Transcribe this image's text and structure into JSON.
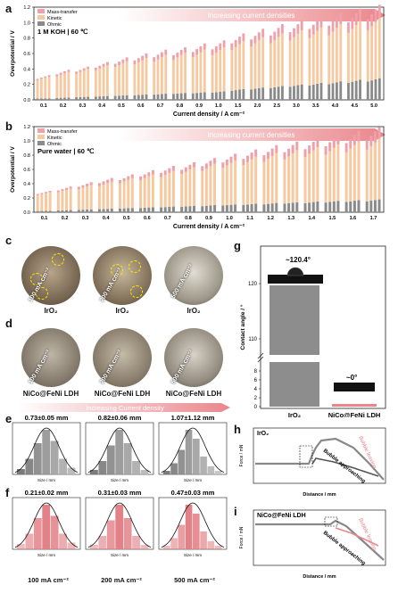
{
  "panels": {
    "a": {
      "label": "a",
      "condition": "1 M KOH | 60 ℃",
      "banner": "Increasing current densities",
      "legend": [
        "Mass-transfer",
        "Kinetic",
        "Ohmic"
      ],
      "ylabel": "Overpotential / V",
      "xlabel": "Current density / A cm⁻²",
      "yticks": [
        "0.0",
        "0.2",
        "0.4",
        "0.6",
        "0.8",
        "1.0",
        "1.2"
      ]
    },
    "b": {
      "label": "b",
      "condition": "Pure water | 60 ℃",
      "banner": "Increasing current densities",
      "legend": [
        "Mass-transfer",
        "Kinetic",
        "Ohmic"
      ],
      "ylabel": "Overpotential / V",
      "xlabel": "Current density / A cm⁻²",
      "yticks": [
        "0.0",
        "0.2",
        "0.4",
        "0.6",
        "0.8",
        "1.0",
        "1.2"
      ]
    },
    "c": {
      "label": "c",
      "photos": [
        "100 mA cm⁻²",
        "200 mA cm⁻²",
        "500 mA cm⁻²"
      ],
      "captions": [
        "IrO₂",
        "IrO₂",
        "IrO₂"
      ]
    },
    "d": {
      "label": "d",
      "photos": [
        "100 mA cm⁻²",
        "200 mA cm⁻²",
        "500 mA cm⁻²"
      ],
      "captions": [
        "NiCo@FeNi LDH",
        "NiCo@FeNi LDH",
        "NiCo@FeNi LDH"
      ],
      "banner": "Increasing Current density"
    },
    "e": {
      "label": "e",
      "titles": [
        "0.73±0.05 mm",
        "0.82±0.06 mm",
        "1.07±1.12 mm"
      ],
      "xlabel": "Size / mm"
    },
    "f": {
      "label": "f",
      "titles": [
        "0.21±0.02 mm",
        "0.31±0.03 mm",
        "0.47±0.03 mm"
      ],
      "xlabel": "Size / mm",
      "bottom": [
        "100 mA cm⁻²",
        "200 mA cm⁻²",
        "500 mA cm⁻²"
      ]
    },
    "g": {
      "label": "g",
      "ylabel": "Contact angle / °",
      "angle1": "~120.4°",
      "angle2": "~0°",
      "xlabels": [
        "IrO₂",
        "NiCo@FeNi LDH"
      ],
      "yticks": [
        "120",
        "110",
        "8",
        "6",
        "4",
        "2",
        "0"
      ]
    },
    "h": {
      "label": "h",
      "sample": "IrO₂",
      "ann1": "Bubble leaving",
      "ann2": "Bubble approaching",
      "xlabel": "Distance / mm",
      "ylabel": "Force / mN"
    },
    "i": {
      "label": "i",
      "sample": "NiCo@FeNi LDH",
      "ann1": "Bubble leaving",
      "ann2": "Bubble approaching",
      "xlabel": "Distance / mm",
      "ylabel": "Force / mN"
    }
  },
  "colors": {
    "mass": "#f0a0a8",
    "kinetic": "#f6c9a0",
    "ohmic": "#8a8a8a",
    "bannerRed": "#e9868b",
    "histGray": "#6e6e6e",
    "histRed": "#e07b82"
  },
  "chart_data": [
    {
      "type": "bar",
      "id": "a",
      "categories": [
        "0.1",
        "0.2",
        "0.3",
        "0.4",
        "0.5",
        "0.6",
        "0.7",
        "0.8",
        "0.9",
        "1.0",
        "1.5",
        "2.0",
        "2.5",
        "3.0",
        "3.5",
        "4.0",
        "4.5",
        "5.0"
      ],
      "series": [
        {
          "name": "Ohmic",
          "values": [
            0.02,
            0.03,
            0.04,
            0.05,
            0.06,
            0.07,
            0.08,
            0.09,
            0.1,
            0.11,
            0.14,
            0.16,
            0.18,
            0.2,
            0.22,
            0.24,
            0.26,
            0.28
          ]
        },
        {
          "name": "Kinetic",
          "values": [
            0.28,
            0.33,
            0.36,
            0.4,
            0.44,
            0.47,
            0.5,
            0.52,
            0.55,
            0.57,
            0.62,
            0.65,
            0.68,
            0.7,
            0.72,
            0.74,
            0.76,
            0.78
          ]
        },
        {
          "name": "Mass-transfer",
          "values": [
            0.02,
            0.03,
            0.03,
            0.04,
            0.05,
            0.06,
            0.07,
            0.07,
            0.08,
            0.09,
            0.1,
            0.11,
            0.12,
            0.13,
            0.14,
            0.15,
            0.16,
            0.17
          ]
        }
      ],
      "ylim": [
        0,
        1.2
      ]
    },
    {
      "type": "bar",
      "id": "b",
      "categories": [
        "0.1",
        "0.2",
        "0.3",
        "0.4",
        "0.5",
        "0.6",
        "0.7",
        "0.8",
        "0.9",
        "1.0",
        "1.1",
        "1.2",
        "1.3",
        "1.4",
        "1.5",
        "1.6",
        "1.7"
      ],
      "series": [
        {
          "name": "Ohmic",
          "values": [
            0.02,
            0.03,
            0.04,
            0.05,
            0.06,
            0.07,
            0.08,
            0.09,
            0.1,
            0.11,
            0.12,
            0.13,
            0.14,
            0.15,
            0.16,
            0.17,
            0.18
          ]
        },
        {
          "name": "Kinetic",
          "values": [
            0.26,
            0.3,
            0.34,
            0.38,
            0.42,
            0.46,
            0.5,
            0.54,
            0.58,
            0.62,
            0.66,
            0.7,
            0.73,
            0.76,
            0.79,
            0.82,
            0.85
          ]
        },
        {
          "name": "Mass-transfer",
          "values": [
            0.02,
            0.03,
            0.04,
            0.05,
            0.05,
            0.06,
            0.07,
            0.07,
            0.08,
            0.09,
            0.1,
            0.11,
            0.12,
            0.13,
            0.14,
            0.15,
            0.16
          ]
        }
      ],
      "ylim": [
        0,
        1.2
      ]
    },
    {
      "type": "bar",
      "id": "g",
      "categories": [
        "IrO₂",
        "NiCo@FeNi LDH"
      ],
      "values": [
        120.4,
        0
      ],
      "ylim": [
        0,
        124
      ]
    }
  ]
}
